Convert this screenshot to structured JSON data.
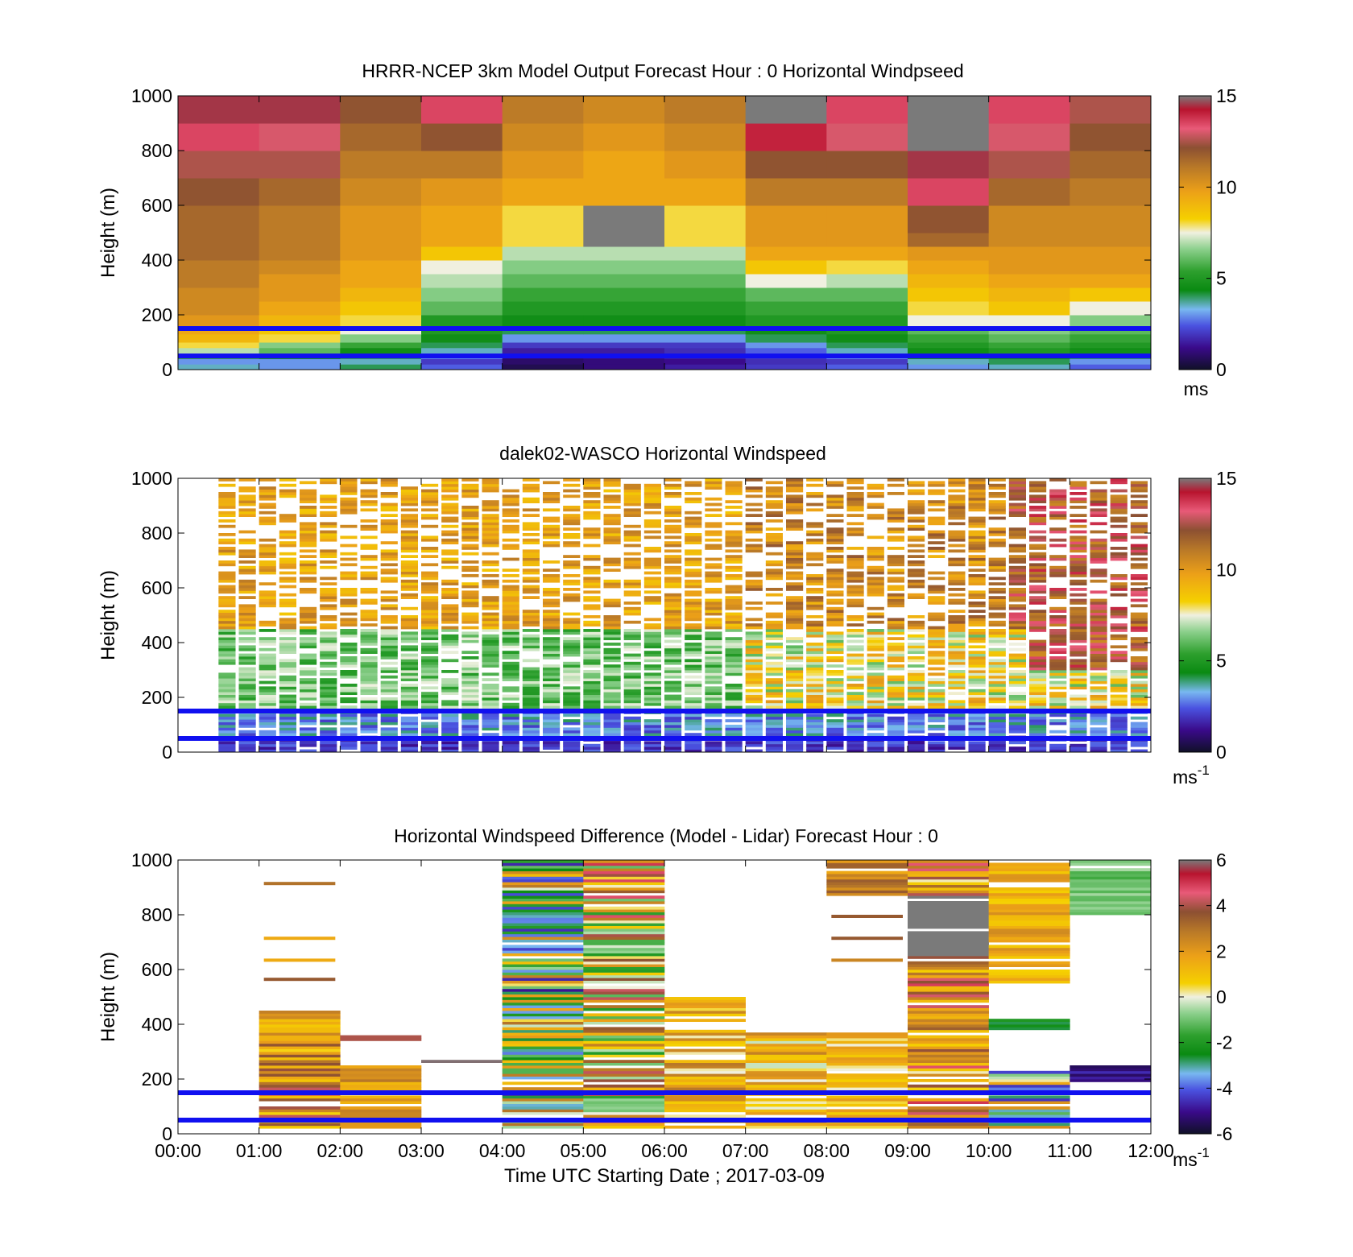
{
  "figure": {
    "xlabel": "Time UTC  Starting Date ; 2017-03-09",
    "xticks": [
      "00:00",
      "01:00",
      "02:00",
      "03:00",
      "04:00",
      "05:00",
      "06:00",
      "07:00",
      "08:00",
      "09:00",
      "10:00",
      "11:00",
      "12:00"
    ]
  },
  "panels": [
    {
      "title": "HRRR-NCEP 3km Model Output   Forecast Hour : 0 Horizontal Windpseed",
      "ylabel": "Height (m)",
      "yticks": [
        "0",
        "200",
        "400",
        "600",
        "800",
        "1000"
      ],
      "cbar_ticks": [
        "0",
        "5",
        "10",
        "15"
      ],
      "cbar_unit": "ms",
      "cbar_exp": ""
    },
    {
      "title": "dalek02-WASCO  Horizontal Windspeed",
      "ylabel": "Height (m)",
      "yticks": [
        "0",
        "200",
        "400",
        "600",
        "800",
        "1000"
      ],
      "cbar_ticks": [
        "0",
        "5",
        "10",
        "15"
      ],
      "cbar_unit": "ms",
      "cbar_exp": "-1"
    },
    {
      "title": "Horizontal Windspeed Difference (Model - Lidar) Forecast Hour : 0",
      "ylabel": "Height (m)",
      "yticks": [
        "0",
        "200",
        "400",
        "600",
        "800",
        "1000"
      ],
      "cbar_ticks": [
        "-6",
        "-4",
        "-2",
        "0",
        "2",
        "4",
        "6"
      ],
      "cbar_unit": "ms",
      "cbar_exp": "-1"
    }
  ],
  "chart_data": [
    {
      "type": "heatmap",
      "title": "HRRR-NCEP 3km Model Output   Forecast Hour : 0 Horizontal Windpseed",
      "ylabel": "Height (m)",
      "ylim": [
        0,
        1000
      ],
      "clim": [
        0,
        15
      ],
      "x": [
        "00:00",
        "01:00",
        "02:00",
        "03:00",
        "04:00",
        "05:00",
        "06:00",
        "07:00",
        "08:00",
        "09:00",
        "10:00",
        "11:00"
      ],
      "levels_m": [
        20,
        40,
        60,
        80,
        100,
        130,
        160,
        200,
        250,
        300,
        350,
        400,
        450,
        500,
        600,
        700,
        800,
        900,
        1000
      ],
      "values": [
        [
          3.5,
          3.0,
          4.0,
          2.5,
          0.5,
          1.0,
          1.5,
          2.0,
          2.5,
          3.0,
          3.5,
          2.5
        ],
        [
          3.0,
          3.0,
          3.5,
          2.0,
          0.8,
          1.0,
          1.2,
          1.8,
          2.0,
          3.5,
          4.0,
          3.0
        ],
        [
          5.5,
          4.5,
          4.0,
          3.0,
          1.0,
          1.2,
          1.5,
          2.0,
          3.0,
          4.5,
          4.5,
          4.0
        ],
        [
          7.0,
          6.0,
          4.5,
          3.5,
          1.5,
          1.5,
          1.8,
          2.5,
          3.5,
          4.5,
          5.0,
          4.5
        ],
        [
          8.0,
          6.5,
          5.5,
          4.0,
          2.0,
          2.0,
          2.0,
          3.0,
          4.0,
          5.0,
          5.5,
          5.0
        ],
        [
          9.0,
          8.0,
          6.5,
          4.5,
          3.0,
          3.0,
          3.0,
          4.0,
          4.5,
          5.5,
          6.0,
          5.5
        ],
        [
          9.5,
          8.5,
          7.5,
          5.0,
          4.0,
          4.0,
          4.0,
          4.5,
          5.0,
          6.0,
          6.5,
          6.0
        ],
        [
          10.0,
          9.0,
          8.0,
          5.0,
          4.5,
          4.5,
          4.5,
          5.0,
          5.0,
          7.5,
          7.5,
          6.5
        ],
        [
          10.5,
          9.5,
          8.5,
          6.0,
          5.0,
          5.0,
          5.0,
          5.5,
          5.5,
          8.0,
          8.5,
          7.5
        ],
        [
          10.5,
          10.0,
          9.0,
          6.5,
          5.5,
          5.5,
          5.5,
          6.0,
          6.0,
          8.5,
          9.0,
          8.5
        ],
        [
          11.0,
          10.0,
          9.5,
          7.0,
          6.0,
          6.0,
          6.0,
          7.5,
          7.0,
          9.0,
          9.5,
          9.5
        ],
        [
          11.0,
          10.5,
          9.5,
          7.5,
          6.5,
          6.5,
          6.5,
          8.5,
          8.0,
          9.5,
          10.0,
          10.0
        ],
        [
          11.5,
          11.0,
          10.0,
          8.5,
          7.0,
          7.0,
          7.0,
          9.5,
          9.5,
          10.0,
          10.0,
          10.0
        ],
        [
          11.5,
          11.0,
          10.0,
          9.5,
          8.0,
          15.5,
          8.0,
          10.0,
          10.0,
          11.5,
          10.5,
          10.5
        ],
        [
          11.5,
          11.0,
          10.0,
          9.5,
          8.0,
          15.5,
          8.0,
          10.0,
          10.0,
          12.0,
          10.5,
          10.5
        ],
        [
          12.0,
          11.5,
          10.5,
          10.0,
          9.5,
          9.5,
          9.5,
          11.0,
          11.0,
          13.5,
          11.5,
          11.0
        ],
        [
          12.5,
          12.5,
          11.0,
          11.0,
          10.0,
          9.5,
          10.0,
          12.0,
          12.0,
          14.5,
          12.5,
          11.5
        ],
        [
          13.5,
          13.0,
          11.5,
          12.0,
          10.5,
          10.0,
          10.5,
          14.0,
          13.0,
          15.5,
          13.0,
          12.0
        ],
        [
          14.5,
          14.5,
          12.0,
          13.5,
          11.0,
          10.5,
          11.0,
          15.5,
          13.5,
          15.5,
          13.5,
          12.5
        ]
      ],
      "guide_lines_m": [
        50,
        150
      ]
    },
    {
      "type": "heatmap",
      "title": "dalek02-WASCO  Horizontal Windspeed",
      "ylabel": "Height (m)",
      "ylim": [
        0,
        1000
      ],
      "clim": [
        0,
        15
      ],
      "description": "High-resolution lidar profile (~48 scans over 00:00-12:00), 0-1000 m. Low speeds (0-3) below ~150 m, green 4-7 at 200-500 m in early hours, yellow/orange 8-11 aloft, red/brown 11-14 near top after 10:00, many missing (white) gaps.",
      "guide_lines_m": [
        50,
        150
      ]
    },
    {
      "type": "heatmap",
      "title": "Horizontal Windspeed Difference (Model - Lidar) Forecast Hour : 0",
      "ylabel": "Height (m)",
      "ylim": [
        0,
        1000
      ],
      "clim": [
        -6,
        6
      ],
      "x": [
        "00:00",
        "01:00",
        "02:00",
        "03:00",
        "04:00",
        "05:00",
        "06:00",
        "07:00",
        "08:00",
        "09:00",
        "10:00",
        "11:00"
      ],
      "guide_lines_m": [
        50,
        150
      ]
    }
  ],
  "colors": {
    "guide_line": "#1010f0",
    "missing": "#ffffff"
  }
}
